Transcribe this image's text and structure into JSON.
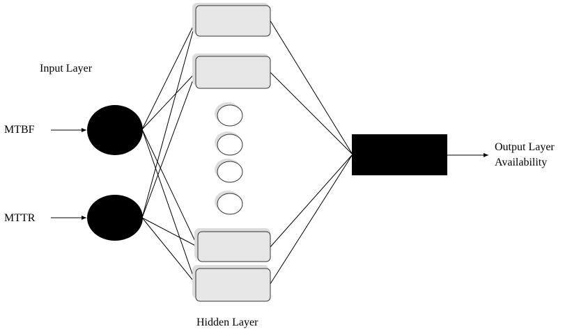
{
  "labels": {
    "input_layer": "Input Layer",
    "hidden_layer": "Hidden Layer",
    "output_layer": "Output Layer",
    "output_quantity": "Availability"
  },
  "inputs": [
    {
      "name": "MTBF"
    },
    {
      "name": "MTTR"
    }
  ],
  "colors": {
    "node_fill": "#000000",
    "hidden_fill": "#e6e6e6",
    "hidden_border": "#333333",
    "shadow": "#d9d9d9",
    "line": "#000000"
  }
}
